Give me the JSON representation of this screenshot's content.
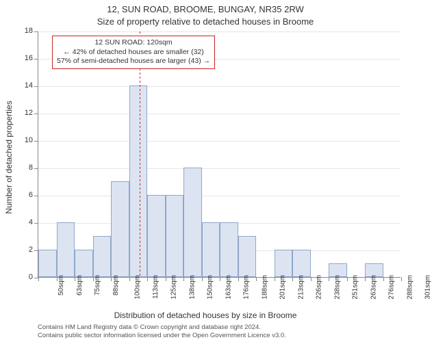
{
  "titles": {
    "line1": "12, SUN ROAD, BROOME, BUNGAY, NR35 2RW",
    "line2": "Size of property relative to detached houses in Broome"
  },
  "axes": {
    "ylabel": "Number of detached properties",
    "xlabel": "Distribution of detached houses by size in Broome",
    "ylim": [
      0,
      18
    ],
    "ytick_step": 2,
    "grid_color": "#e6e6e6",
    "axis_color": "#888888",
    "background_color": "#ffffff"
  },
  "chart": {
    "type": "histogram",
    "bar_color": "#dce4f2",
    "bar_border_color": "#8fa7c8",
    "xticks": [
      50,
      63,
      75,
      88,
      100,
      113,
      125,
      138,
      150,
      163,
      176,
      188,
      201,
      213,
      226,
      238,
      251,
      263,
      276,
      288,
      301
    ],
    "xunit": "sqm",
    "values": [
      2,
      4,
      2,
      3,
      7,
      14,
      6,
      6,
      8,
      4,
      4,
      3,
      0,
      2,
      2,
      0,
      1,
      0,
      1,
      0
    ],
    "label_fontsize": 10,
    "tick_fontsize": 11
  },
  "marker": {
    "x_value": 120,
    "line_color": "#cc2222"
  },
  "annotation": {
    "border_color": "#cc2222",
    "lines": {
      "a": "12 SUN ROAD: 120sqm",
      "b": "← 42% of detached houses are smaller (32)",
      "c": "57% of semi-detached houses are larger (43) →"
    }
  },
  "credits": {
    "line1": "Contains HM Land Registry data © Crown copyright and database right 2024.",
    "line2": "Contains public sector information licensed under the Open Government Licence v3.0."
  }
}
